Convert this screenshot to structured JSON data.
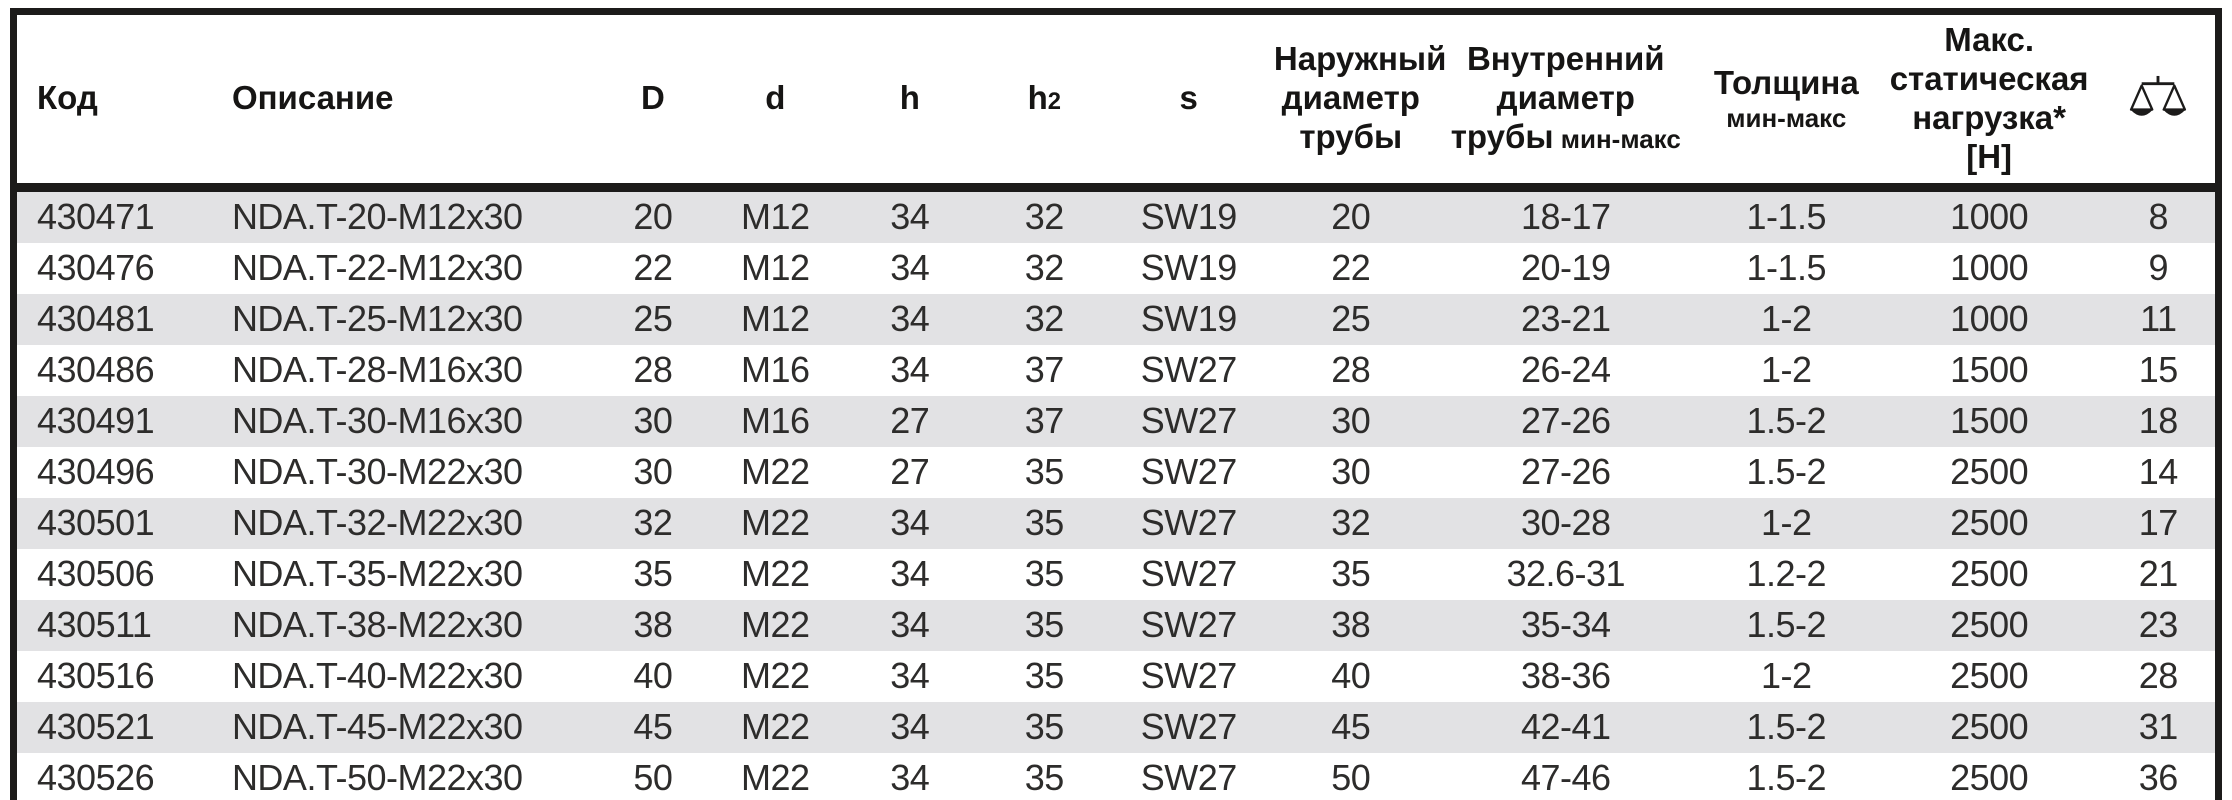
{
  "colors": {
    "border": "#1c1b1a",
    "row_alt_background": "#e2e2e4",
    "row_background": "#ffffff",
    "header_text": "#161514",
    "cell_text": "#2d2c2b"
  },
  "table": {
    "columns": [
      {
        "key": "code",
        "label": "Код",
        "align": "left"
      },
      {
        "key": "description",
        "label": "Описание",
        "align": "left"
      },
      {
        "key": "D",
        "label": "D"
      },
      {
        "key": "d",
        "label": "d"
      },
      {
        "key": "h",
        "label": "h"
      },
      {
        "key": "h2",
        "label": "h",
        "suffix": "2"
      },
      {
        "key": "s",
        "label": "s"
      },
      {
        "key": "outer-pipe-diameter",
        "label": "Наружный\nдиаметр\nтрубы"
      },
      {
        "key": "inner-pipe-diameter",
        "label": "Внутренний\nдиаметр\nтрубы",
        "sublabel": " мин-макс",
        "sublabel_inline": true
      },
      {
        "key": "thickness",
        "label": "Толщина",
        "sublabel": "мин-макс"
      },
      {
        "key": "max-static-load",
        "label": "Макс.\nстатическая\nнагрузка*\n[Н]"
      },
      {
        "key": "weight",
        "label": "",
        "icon": "scales-icon"
      }
    ],
    "rows": [
      [
        "430471",
        "NDA.T-20-M12x30",
        "20",
        "M12",
        "34",
        "32",
        "SW19",
        "20",
        "18-17",
        "1-1.5",
        "1000",
        "8"
      ],
      [
        "430476",
        "NDA.T-22-M12x30",
        "22",
        "M12",
        "34",
        "32",
        "SW19",
        "22",
        "20-19",
        "1-1.5",
        "1000",
        "9"
      ],
      [
        "430481",
        "NDA.T-25-M12x30",
        "25",
        "M12",
        "34",
        "32",
        "SW19",
        "25",
        "23-21",
        "1-2",
        "1000",
        "11"
      ],
      [
        "430486",
        "NDA.T-28-M16x30",
        "28",
        "M16",
        "34",
        "37",
        "SW27",
        "28",
        "26-24",
        "1-2",
        "1500",
        "15"
      ],
      [
        "430491",
        "NDA.T-30-M16x30",
        "30",
        "M16",
        "27",
        "37",
        "SW27",
        "30",
        "27-26",
        "1.5-2",
        "1500",
        "18"
      ],
      [
        "430496",
        "NDA.T-30-M22x30",
        "30",
        "M22",
        "27",
        "35",
        "SW27",
        "30",
        "27-26",
        "1.5-2",
        "2500",
        "14"
      ],
      [
        "430501",
        "NDA.T-32-M22x30",
        "32",
        "M22",
        "34",
        "35",
        "SW27",
        "32",
        "30-28",
        "1-2",
        "2500",
        "17"
      ],
      [
        "430506",
        "NDA.T-35-M22x30",
        "35",
        "M22",
        "34",
        "35",
        "SW27",
        "35",
        "32.6-31",
        "1.2-2",
        "2500",
        "21"
      ],
      [
        "430511",
        "NDA.T-38-M22x30",
        "38",
        "M22",
        "34",
        "35",
        "SW27",
        "38",
        "35-34",
        "1.5-2",
        "2500",
        "23"
      ],
      [
        "430516",
        "NDA.T-40-M22x30",
        "40",
        "M22",
        "34",
        "35",
        "SW27",
        "40",
        "38-36",
        "1-2",
        "2500",
        "28"
      ],
      [
        "430521",
        "NDA.T-45-M22x30",
        "45",
        "M22",
        "34",
        "35",
        "SW27",
        "45",
        "42-41",
        "1.5-2",
        "2500",
        "31"
      ],
      [
        "430526",
        "NDA.T-50-M22x30",
        "50",
        "M22",
        "34",
        "35",
        "SW27",
        "50",
        "47-46",
        "1.5-2",
        "2500",
        "36"
      ]
    ],
    "column_widths_pct": [
      9,
      17.5,
      5,
      6.1,
      6.1,
      6.1,
      7,
      7.7,
      11.8,
      8.2,
      10.2,
      5.3
    ]
  }
}
